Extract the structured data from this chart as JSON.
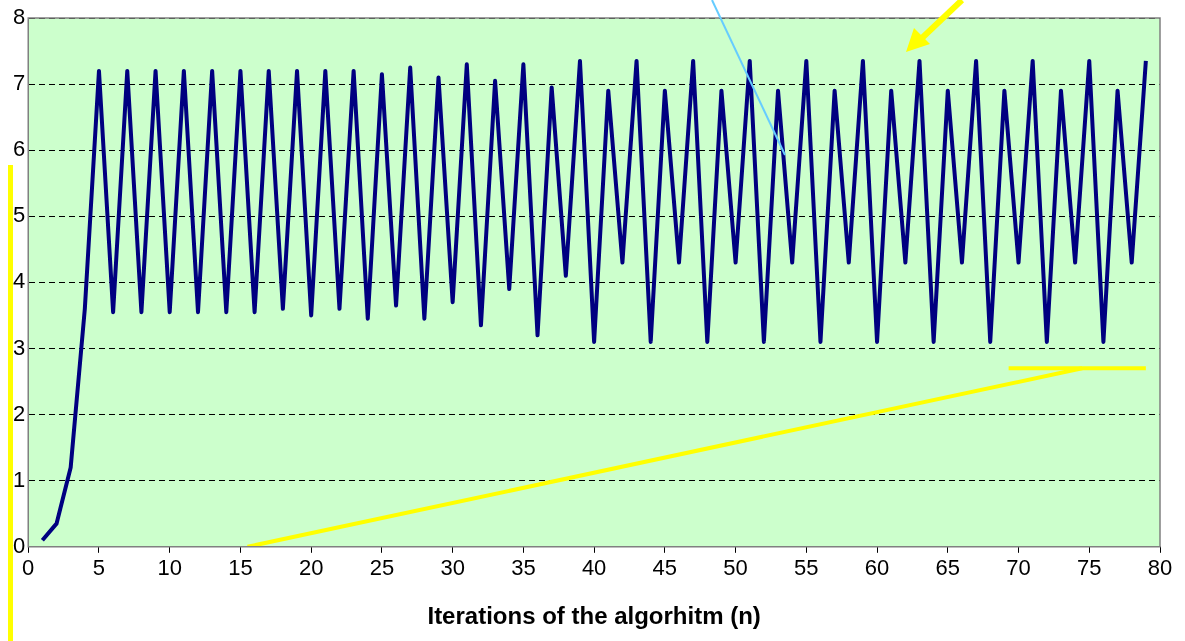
{
  "chart_data": {
    "type": "line",
    "xlabel": "Iterations of the algorhitm (n)",
    "x": [
      1,
      2,
      3,
      4,
      5,
      6,
      7,
      8,
      9,
      10,
      11,
      12,
      13,
      14,
      15,
      16,
      17,
      18,
      19,
      20,
      21,
      22,
      23,
      24,
      25,
      26,
      27,
      28,
      29,
      30,
      31,
      32,
      33,
      34,
      35,
      36,
      37,
      38,
      39,
      40,
      41,
      42,
      43,
      44,
      45,
      46,
      47,
      48,
      49,
      50,
      51,
      52,
      53,
      54,
      55,
      56,
      57,
      58,
      59,
      60,
      61,
      62,
      63,
      64,
      65,
      66,
      67,
      68,
      69,
      70,
      71,
      72,
      73,
      74,
      75,
      76,
      77,
      78,
      79
    ],
    "series": [
      {
        "color": "#000080",
        "values": [
          0.1,
          0.35,
          1.2,
          3.6,
          7.2,
          3.55,
          7.2,
          3.55,
          7.2,
          3.55,
          7.2,
          3.55,
          7.2,
          3.55,
          7.2,
          3.55,
          7.2,
          3.6,
          7.2,
          3.5,
          7.2,
          3.6,
          7.2,
          3.45,
          7.15,
          3.65,
          7.25,
          3.45,
          7.1,
          3.7,
          7.3,
          3.35,
          7.05,
          3.9,
          7.3,
          3.2,
          6.95,
          4.1,
          7.35,
          3.1,
          6.9,
          4.3,
          7.35,
          3.1,
          6.9,
          4.3,
          7.35,
          3.1,
          6.9,
          4.3,
          7.35,
          3.1,
          6.9,
          4.3,
          7.35,
          3.1,
          6.9,
          4.3,
          7.35,
          3.1,
          6.9,
          4.3,
          7.35,
          3.1,
          6.9,
          4.3,
          7.35,
          3.1,
          6.9,
          4.3,
          7.35,
          3.1,
          6.9,
          4.3,
          7.35,
          3.1,
          6.9,
          4.3,
          7.35
        ]
      },
      {
        "type": "line",
        "color": "#ffff00",
        "x": [
          15.5,
          74.5
        ],
        "values": [
          0,
          2.7
        ]
      },
      {
        "type": "line",
        "color": "#ffff00",
        "x": [
          69.3,
          79
        ],
        "values": [
          2.7,
          2.7
        ]
      }
    ],
    "xlim": [
      0,
      80
    ],
    "xticks": [
      0,
      5,
      10,
      15,
      20,
      25,
      30,
      35,
      40,
      45,
      50,
      55,
      60,
      65,
      70,
      75,
      80
    ],
    "ylim": [
      0,
      8
    ],
    "yticks": [
      0,
      1,
      2,
      3,
      4,
      5,
      6,
      7,
      8
    ],
    "grid": "y",
    "legend": false,
    "marker": "none",
    "line_style": "solid"
  }
}
